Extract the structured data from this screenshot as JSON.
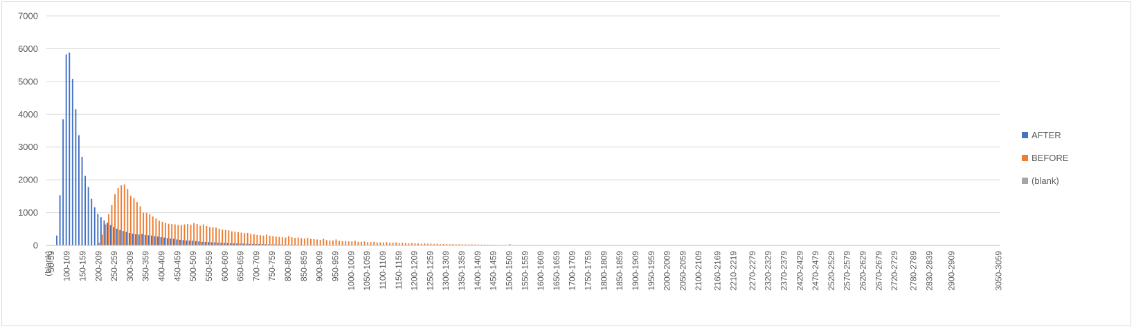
{
  "chart_data": {
    "type": "bar",
    "ylim": [
      0,
      7000
    ],
    "yticks": [
      "0",
      "1000",
      "2000",
      "3000",
      "4000",
      "5000",
      "6000",
      "7000"
    ],
    "grid": true,
    "legend_position": "right",
    "colors": {
      "AFTER": "#4472c4",
      "BEFORE": "#ed7d31",
      "(blank)": "#a5a5a5",
      "grid": "#d9d9d9",
      "axis": "#bfbfbf",
      "text": "#595959"
    },
    "categories": [
      "(blank)",
      "50-59",
      "60-69",
      "70-79",
      "80-89",
      "90-99",
      "100-109",
      "110-119",
      "120-129",
      "130-139",
      "140-149",
      "150-159",
      "160-169",
      "170-179",
      "180-189",
      "190-199",
      "200-209",
      "210-219",
      "220-229",
      "230-239",
      "240-249",
      "250-259",
      "260-269",
      "270-279",
      "280-289",
      "290-299",
      "300-309",
      "310-319",
      "320-329",
      "330-339",
      "340-349",
      "350-359",
      "360-369",
      "370-379",
      "380-389",
      "390-399",
      "400-409",
      "410-419",
      "420-429",
      "430-439",
      "440-449",
      "450-459",
      "460-469",
      "470-479",
      "480-489",
      "490-499",
      "500-509",
      "510-519",
      "520-529",
      "530-539",
      "540-549",
      "550-559",
      "560-569",
      "570-579",
      "580-589",
      "590-599",
      "600-609",
      "610-619",
      "620-629",
      "630-639",
      "640-649",
      "650-659",
      "660-669",
      "670-679",
      "680-689",
      "690-699",
      "700-709",
      "710-719",
      "720-729",
      "730-739",
      "740-749",
      "750-759",
      "760-769",
      "770-779",
      "780-789",
      "790-799",
      "800-809",
      "810-819",
      "820-829",
      "830-839",
      "840-849",
      "850-859",
      "860-869",
      "870-879",
      "880-889",
      "890-899",
      "900-909",
      "910-919",
      "920-929",
      "930-939",
      "940-949",
      "950-959",
      "960-969",
      "970-979",
      "980-989",
      "990-999",
      "1000-1009",
      "1010-1019",
      "1020-1029",
      "1030-1039",
      "1040-1049",
      "1050-1059",
      "1060-1069",
      "1070-1079",
      "1080-1089",
      "1090-1099",
      "1100-1109",
      "1110-1119",
      "1120-1129",
      "1130-1139",
      "1140-1149",
      "1150-1159",
      "1160-1169",
      "1170-1179",
      "1180-1189",
      "1190-1199",
      "1200-1209",
      "1210-1219",
      "1220-1229",
      "1230-1239",
      "1240-1249",
      "1250-1259",
      "1260-1269",
      "1270-1279",
      "1280-1289",
      "1290-1299",
      "1300-1309",
      "1310-1319",
      "1320-1329",
      "1330-1339",
      "1340-1349",
      "1350-1359",
      "1360-1369",
      "1370-1379",
      "1380-1389",
      "1390-1399",
      "1400-1409",
      "1410-1419",
      "1420-1429",
      "1430-1439",
      "1440-1449",
      "1450-1459",
      "1460-1469",
      "1470-1479",
      "1480-1489",
      "1490-1499",
      "1500-1509",
      "1510-1519",
      "1520-1529",
      "1530-1539",
      "1540-1549",
      "1550-1559",
      "1560-1569",
      "1570-1579",
      "1580-1589",
      "1590-1599",
      "1600-1609",
      "1610-1619",
      "1620-1629",
      "1630-1639",
      "1640-1649",
      "1650-1659",
      "1660-1669",
      "1670-1679",
      "1680-1689",
      "1690-1699",
      "1700-1709",
      "1710-1719",
      "1720-1729",
      "1730-1739",
      "1740-1749",
      "1750-1759",
      "1760-1769",
      "1770-1779",
      "1780-1789",
      "1790-1799",
      "1800-1809",
      "1810-1819",
      "1820-1829",
      "1830-1839",
      "1840-1849",
      "1850-1859",
      "1860-1869",
      "1870-1879",
      "1880-1889",
      "1890-1899",
      "1900-1909",
      "1910-1919",
      "1920-1929",
      "1930-1939",
      "1940-1949",
      "1950-1959",
      "1960-1969",
      "1970-1979",
      "1980-1989",
      "1990-1999",
      "2000-2009",
      "2010-2019",
      "2020-2029",
      "2030-2039",
      "2040-2049",
      "2050-2059",
      "2060-2069",
      "2070-2079",
      "2080-2089",
      "2090-2099",
      "2100-2109",
      "2110-2119",
      "2120-2129",
      "2130-2139",
      "2140-2149",
      "2150-2159",
      "2160-2169",
      "2170-2179",
      "2180-2189",
      "2190-2199",
      "2200-2209",
      "2210-2219",
      "2220-2229",
      "2230-2239",
      "2240-2249",
      "2250-2259",
      "2260-2269",
      "2270-2279",
      "2280-2289",
      "2290-2299",
      "2300-2309",
      "2310-2319",
      "2320-2329",
      "2330-2339",
      "2340-2349",
      "2350-2359",
      "2360-2369",
      "2370-2379",
      "2380-2389",
      "2390-2399",
      "2400-2409",
      "2410-2419",
      "2420-2429",
      "2430-2439",
      "2440-2449",
      "2450-2459",
      "2460-2469",
      "2470-2479",
      "2480-2489",
      "2490-2499",
      "2500-2509",
      "2510-2519",
      "2520-2529",
      "2530-2539",
      "2540-2549",
      "2550-2559",
      "2560-2569",
      "2570-2579",
      "2580-2589",
      "2590-2599",
      "2600-2609",
      "2610-2619",
      "2620-2629",
      "2630-2639",
      "2640-2649",
      "2650-2659",
      "2660-2669",
      "2670-2679",
      "2680-2689",
      "2690-2699",
      "2700-2709",
      "2710-2719",
      "2720-2729",
      "2730-2739",
      "2740-2749",
      "2750-2759",
      "2760-2769",
      "2770-2779",
      "2780-2789",
      "2790-2799",
      "2800-2809",
      "2810-2819",
      "2820-2829",
      "2830-2839",
      "2840-2849",
      "2850-2859",
      "2860-2869",
      "2870-2879",
      "2880-2889",
      "2890-2899",
      "2900-2909",
      "2910-2919",
      "2920-2929",
      "2930-2939",
      "2940-2949",
      "2950-2959",
      "2960-2969",
      "2970-2979",
      "2980-2989",
      "2990-2999",
      "3000-3009",
      "3010-3019",
      "3020-3029",
      "3030-3039",
      "3040-3049",
      "3050-3059"
    ],
    "visible_tick_labels": [
      "(blank)",
      "50-59",
      "100-109",
      "150-159",
      "200-209",
      "250-259",
      "300-309",
      "350-359",
      "400-409",
      "450-459",
      "500-509",
      "550-559",
      "600-609",
      "650-659",
      "700-709",
      "750-759",
      "800-809",
      "850-859",
      "900-909",
      "950-959",
      "1000-1009",
      "1050-1059",
      "1100-1109",
      "1150-1159",
      "1200-1209",
      "1250-1259",
      "1300-1309",
      "1350-1359",
      "1400-1409",
      "1450-1459",
      "1500-1509",
      "1550-1559",
      "1600-1609",
      "1650-1659",
      "1700-1709",
      "1750-1759",
      "1800-1809",
      "1850-1859",
      "1900-1909",
      "1950-1959",
      "2000-2009",
      "2050-2059",
      "2100-2109",
      "2160-2169",
      "2210-2219",
      "2270-2279",
      "2320-2329",
      "2370-2379",
      "2420-2429",
      "2470-2479",
      "2520-2529",
      "2570-2579",
      "2620-2629",
      "2670-2679",
      "2720-2729",
      "2780-2789",
      "2830-2839",
      "2900-2909",
      "3050-3059"
    ],
    "series": [
      {
        "name": "AFTER",
        "values": {
          "70-79": 300,
          "80-89": 1530,
          "90-99": 3850,
          "100-109": 5830,
          "110-119": 5880,
          "120-129": 5080,
          "130-139": 4150,
          "140-149": 3360,
          "150-159": 2700,
          "160-169": 2120,
          "170-179": 1780,
          "180-189": 1420,
          "190-199": 1160,
          "200-209": 960,
          "210-219": 860,
          "220-229": 760,
          "230-239": 690,
          "240-249": 620,
          "250-259": 560,
          "260-269": 510,
          "270-279": 470,
          "280-289": 440,
          "290-299": 410,
          "300-309": 380,
          "310-319": 360,
          "320-329": 340,
          "330-339": 330,
          "340-349": 350,
          "350-359": 320,
          "360-369": 310,
          "370-379": 300,
          "380-389": 280,
          "390-399": 270,
          "400-409": 250,
          "410-419": 240,
          "420-429": 220,
          "430-439": 210,
          "440-449": 200,
          "450-459": 180,
          "460-469": 170,
          "470-479": 160,
          "480-489": 150,
          "490-499": 145,
          "500-509": 140,
          "510-519": 130,
          "520-529": 120,
          "530-539": 110,
          "540-549": 105,
          "550-559": 100,
          "560-569": 95,
          "570-579": 90,
          "580-589": 85,
          "590-599": 80,
          "600-609": 75,
          "610-619": 70,
          "620-629": 65,
          "630-639": 60,
          "640-649": 58,
          "650-659": 55,
          "660-669": 52,
          "670-679": 50,
          "680-689": 48,
          "690-699": 45,
          "700-709": 42,
          "710-719": 40,
          "720-729": 38,
          "730-739": 35,
          "740-749": 32,
          "750-759": 30,
          "760-769": 28,
          "770-779": 26,
          "780-789": 24,
          "790-799": 22,
          "800-809": 20,
          "810-819": 18,
          "820-829": 16,
          "830-839": 15,
          "840-849": 14,
          "850-859": 12,
          "860-869": 10,
          "870-879": 9,
          "880-889": 8,
          "890-899": 7,
          "900-909": 6,
          "910-919": 5,
          "920-929": 4,
          "930-939": 4,
          "940-949": 3,
          "950-959": 3
        }
      },
      {
        "name": "BEFORE",
        "values": {
          "200-209": 80,
          "210-219": 330,
          "220-229": 640,
          "230-239": 950,
          "240-249": 1230,
          "250-259": 1560,
          "260-269": 1750,
          "270-279": 1830,
          "280-289": 1860,
          "290-299": 1720,
          "300-309": 1510,
          "310-319": 1440,
          "320-329": 1320,
          "330-339": 1190,
          "340-349": 1000,
          "350-359": 990,
          "360-369": 950,
          "370-379": 880,
          "380-389": 820,
          "390-399": 750,
          "400-409": 720,
          "410-419": 690,
          "420-429": 660,
          "430-439": 650,
          "440-449": 640,
          "450-459": 620,
          "460-469": 620,
          "470-479": 640,
          "480-489": 650,
          "490-499": 630,
          "500-509": 680,
          "510-519": 650,
          "520-529": 600,
          "530-539": 640,
          "540-549": 590,
          "550-559": 560,
          "560-569": 550,
          "570-579": 540,
          "580-589": 510,
          "590-599": 480,
          "600-609": 470,
          "610-619": 460,
          "620-629": 430,
          "630-639": 420,
          "640-649": 400,
          "650-659": 390,
          "660-669": 370,
          "670-679": 380,
          "680-689": 350,
          "690-699": 340,
          "700-709": 320,
          "710-719": 310,
          "720-729": 300,
          "730-739": 330,
          "740-749": 290,
          "750-759": 280,
          "760-769": 270,
          "770-779": 260,
          "780-789": 250,
          "790-799": 240,
          "800-809": 280,
          "810-819": 250,
          "820-829": 230,
          "830-839": 240,
          "840-849": 220,
          "850-859": 210,
          "860-869": 230,
          "870-879": 200,
          "880-889": 190,
          "890-899": 180,
          "900-909": 170,
          "910-919": 200,
          "920-929": 160,
          "930-939": 150,
          "940-949": 150,
          "950-959": 180,
          "960-969": 140,
          "970-979": 130,
          "980-989": 130,
          "990-999": 120,
          "1000-1009": 120,
          "1010-1019": 140,
          "1020-1029": 110,
          "1030-1039": 110,
          "1040-1049": 120,
          "1050-1059": 100,
          "1060-1069": 100,
          "1070-1079": 110,
          "1080-1089": 90,
          "1090-1099": 90,
          "1100-1109": 90,
          "1110-1119": 100,
          "1120-1129": 80,
          "1130-1139": 80,
          "1140-1149": 90,
          "1150-1159": 70,
          "1160-1169": 80,
          "1170-1179": 70,
          "1180-1189": 60,
          "1190-1199": 70,
          "1200-1209": 60,
          "1210-1219": 60,
          "1220-1229": 50,
          "1230-1239": 60,
          "1240-1249": 50,
          "1250-1259": 50,
          "1260-1269": 45,
          "1270-1279": 50,
          "1280-1289": 40,
          "1290-1299": 45,
          "1300-1309": 40,
          "1310-1319": 35,
          "1320-1329": 40,
          "1330-1339": 30,
          "1340-1349": 35,
          "1350-1359": 30,
          "1360-1369": 30,
          "1370-1379": 25,
          "1380-1389": 30,
          "1390-1399": 25,
          "1400-1409": 25,
          "1410-1419": 20,
          "1420-1429": 25,
          "1430-1439": 20,
          "1440-1449": 20,
          "1450-1459": 15,
          "1460-1469": 10,
          "1470-1479": 10,
          "1480-1489": 5,
          "1490-1499": 5,
          "1500-1509": 40
        }
      },
      {
        "name": "(blank)",
        "values": {}
      }
    ]
  }
}
